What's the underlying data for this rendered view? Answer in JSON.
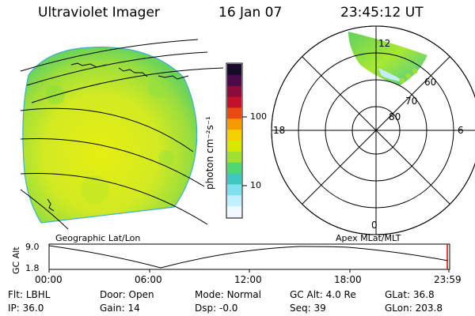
{
  "header": {
    "title": "Ultraviolet Imager",
    "date": "16 Jan 07",
    "time": "23:45:12 UT"
  },
  "colorbar": {
    "unit_label": "photon cm⁻²s⁻¹",
    "ticks": [
      "100",
      "10"
    ],
    "colors": [
      "#1a0a2a",
      "#4a0a4a",
      "#8a0a3a",
      "#c0102a",
      "#e84a10",
      "#f59a00",
      "#f5d000",
      "#d8e800",
      "#a0e030",
      "#50d870",
      "#40c8c0",
      "#80e0f0",
      "#c0f0ff",
      "#f0f8ff"
    ]
  },
  "map": {
    "label": "Geographic Lat/Lon"
  },
  "polar": {
    "label": "Apex MLat/MLT",
    "mlt_labels": [
      "12",
      "6",
      "0",
      "18"
    ],
    "lat_labels": [
      "60",
      "70",
      "80"
    ]
  },
  "timeline": {
    "axis_label": "GC Alt",
    "y_ticks": [
      "9.0",
      "1.8"
    ],
    "x_ticks": [
      "00:00",
      "06:00",
      "12:00",
      "18:00",
      "23:59"
    ]
  },
  "status": {
    "row1": [
      {
        "key": "Flt:",
        "value": "LBHL"
      },
      {
        "key": "Door:",
        "value": "Open"
      },
      {
        "key": "Mode:",
        "value": "Normal"
      },
      {
        "key": "GC Alt:",
        "value": "4.0 Re"
      },
      {
        "key": "GLat:",
        "value": "36.8"
      }
    ],
    "row2": [
      {
        "key": "IP:",
        "value": "36.0"
      },
      {
        "key": "Gain:",
        "value": "14"
      },
      {
        "key": "Dsp:",
        "value": "-0.0"
      },
      {
        "key": "Seq:",
        "value": "39"
      },
      {
        "key": "GLon:",
        "value": "203.8"
      }
    ]
  }
}
